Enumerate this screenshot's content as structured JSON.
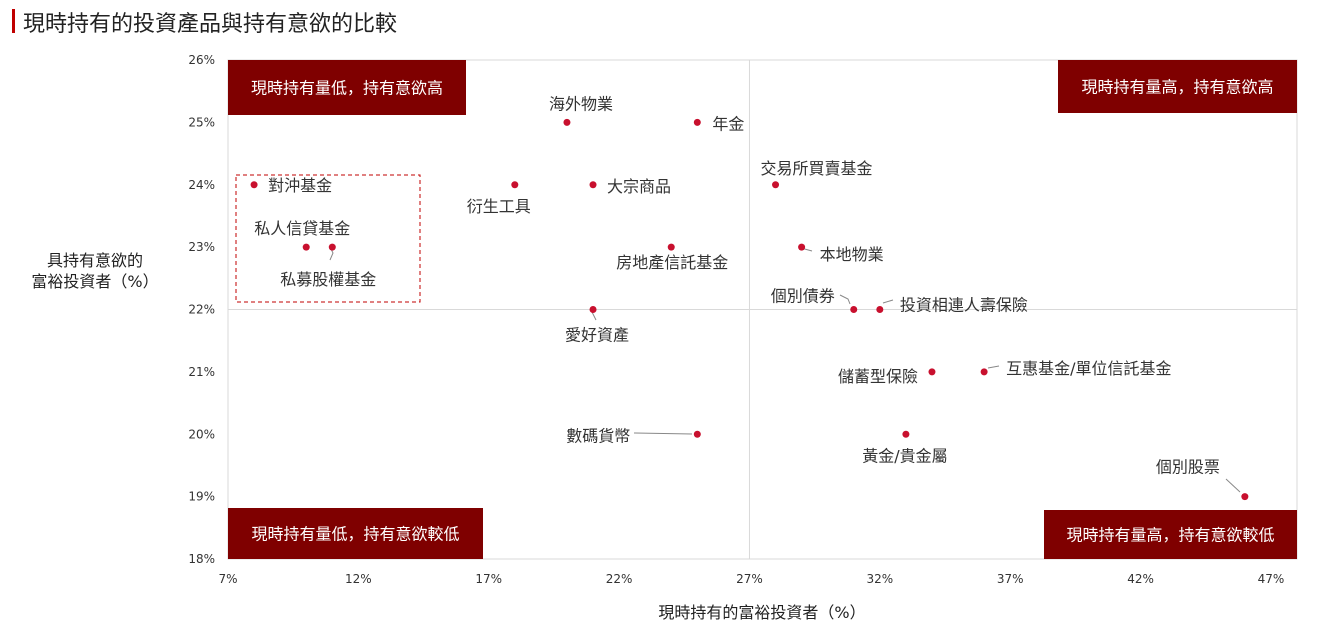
{
  "title": "現時持有的投資產品與持有意欲的比較",
  "colors": {
    "accent": "#c00000",
    "quadrant_box": "#7f0000",
    "point": "#c8102e",
    "grid": "#d9d9d9",
    "dashed_box": "#c00000"
  },
  "chart_data": {
    "type": "scatter",
    "title": "現時持有的投資產品與持有意欲的比較",
    "xlabel": "現時持有的富裕投資者（%）",
    "ylabel_lines": [
      "具持有意欲的",
      "富裕投資者（%）"
    ],
    "xlim": [
      7,
      48
    ],
    "ylim": [
      18,
      26
    ],
    "x_ticks": [
      {
        "value": 7,
        "label": "7%"
      },
      {
        "value": 12,
        "label": "12%"
      },
      {
        "value": 17,
        "label": "17%"
      },
      {
        "value": 22,
        "label": "22%"
      },
      {
        "value": 27,
        "label": "27%"
      },
      {
        "value": 32,
        "label": "32%"
      },
      {
        "value": 37,
        "label": "37%"
      },
      {
        "value": 42,
        "label": "42%"
      },
      {
        "value": 47,
        "label": "47%"
      }
    ],
    "y_ticks": [
      {
        "value": 18,
        "label": "18%"
      },
      {
        "value": 19,
        "label": "19%"
      },
      {
        "value": 20,
        "label": "20%"
      },
      {
        "value": 21,
        "label": "21%"
      },
      {
        "value": 22,
        "label": "22%"
      },
      {
        "value": 23,
        "label": "23%"
      },
      {
        "value": 24,
        "label": "24%"
      },
      {
        "value": 25,
        "label": "25%"
      },
      {
        "value": 26,
        "label": "26%"
      }
    ],
    "divider_x": 27,
    "divider_y": 22,
    "points": [
      {
        "name": "對沖基金",
        "x": 8,
        "y": 24
      },
      {
        "name": "私人信貸基金",
        "x": 10,
        "y": 23
      },
      {
        "name": "私募股權基金",
        "x": 11,
        "y": 23
      },
      {
        "name": "海外物業",
        "x": 20,
        "y": 25
      },
      {
        "name": "年金",
        "x": 25,
        "y": 25
      },
      {
        "name": "衍生工具",
        "x": 18,
        "y": 24
      },
      {
        "name": "大宗商品",
        "x": 21,
        "y": 24
      },
      {
        "name": "房地產信託基金",
        "x": 24,
        "y": 23
      },
      {
        "name": "愛好資產",
        "x": 21,
        "y": 22
      },
      {
        "name": "數碼貨幣",
        "x": 25,
        "y": 20
      },
      {
        "name": "交易所買賣基金",
        "x": 28,
        "y": 24
      },
      {
        "name": "本地物業",
        "x": 29,
        "y": 23
      },
      {
        "name": "個別債券",
        "x": 31,
        "y": 22
      },
      {
        "name": "投資相連人壽保險",
        "x": 32,
        "y": 22
      },
      {
        "name": "儲蓄型保險",
        "x": 34,
        "y": 21
      },
      {
        "name": "互惠基金/單位信託基金",
        "x": 36,
        "y": 21
      },
      {
        "name": "黃金/貴金屬",
        "x": 33,
        "y": 20
      },
      {
        "name": "個別股票",
        "x": 46,
        "y": 19
      }
    ],
    "quadrants": {
      "top_left": "現時持有量低，持有意欲高",
      "top_right": "現時持有量高，持有意欲高",
      "bottom_left": "現時持有量低，持有意欲較低",
      "bottom_right": "現時持有量高，持有意欲較低"
    }
  }
}
